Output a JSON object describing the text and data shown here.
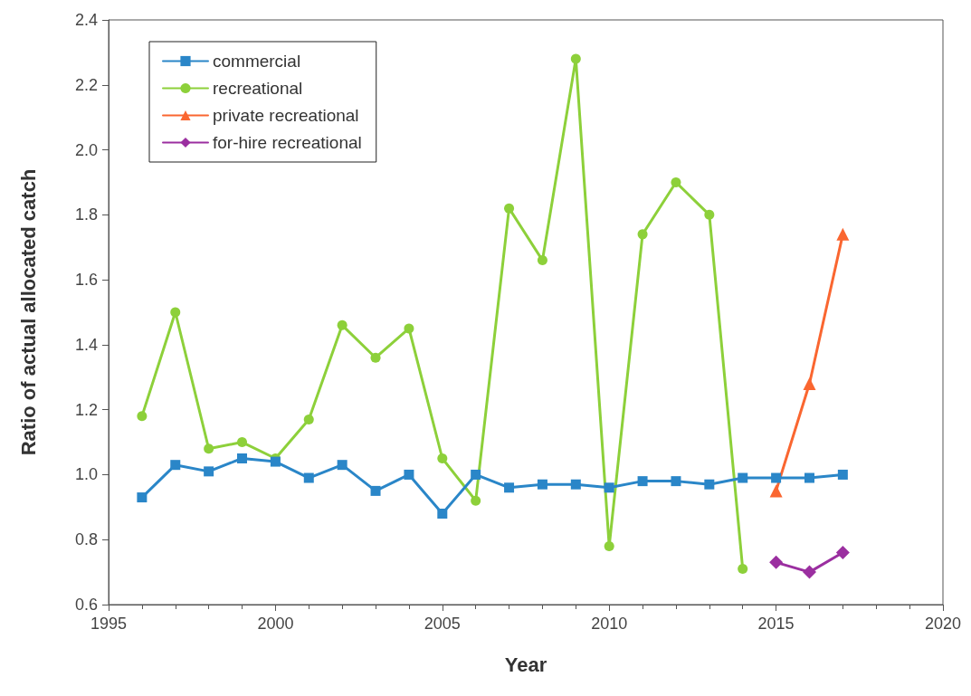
{
  "chart_data": {
    "type": "line",
    "xlabel": "Year",
    "ylabel": "Ratio of actual allocated catch",
    "xlim": [
      1995,
      2020
    ],
    "xticks": [
      1995,
      2000,
      2005,
      2010,
      2015,
      2020
    ],
    "ylim": [
      0.6,
      2.4
    ],
    "yticks": [
      {
        "value": 0.6,
        "label": "0.6"
      },
      {
        "value": 0.8,
        "label": "0.8"
      },
      {
        "value": 1.0,
        "label": "1.0"
      },
      {
        "value": 1.2,
        "label": "1.2"
      },
      {
        "value": 1.4,
        "label": "1.4"
      },
      {
        "value": 1.6,
        "label": "1.6"
      },
      {
        "value": 1.8,
        "label": "1.8"
      },
      {
        "value": 2.0,
        "label": "2.0"
      },
      {
        "value": 2.2,
        "label": "2.2"
      },
      {
        "value": 2.4,
        "label": "2.4"
      }
    ],
    "grid": false,
    "legend": "top left",
    "series": [
      {
        "name": "commercial",
        "color": "#2a86c8",
        "marker": "square",
        "x": [
          1996,
          1997,
          1998,
          1999,
          2000,
          2001,
          2002,
          2003,
          2004,
          2005,
          2006,
          2007,
          2008,
          2009,
          2010,
          2011,
          2012,
          2013,
          2014,
          2015,
          2016,
          2017
        ],
        "values": [
          0.93,
          1.03,
          1.01,
          1.05,
          1.04,
          0.99,
          1.03,
          0.95,
          1.0,
          0.88,
          1.0,
          0.96,
          0.97,
          0.97,
          0.96,
          0.98,
          0.98,
          0.97,
          0.99,
          0.99,
          0.99,
          1.0
        ]
      },
      {
        "name": "recreational",
        "color": "#8dd03a",
        "marker": "circle",
        "x": [
          1996,
          1997,
          1998,
          1999,
          2000,
          2001,
          2002,
          2003,
          2004,
          2005,
          2006,
          2007,
          2008,
          2009,
          2010,
          2011,
          2012,
          2013,
          2014
        ],
        "values": [
          1.18,
          1.5,
          1.08,
          1.1,
          1.05,
          1.17,
          1.46,
          1.36,
          1.45,
          1.05,
          0.92,
          1.82,
          1.66,
          2.28,
          0.78,
          1.74,
          1.9,
          1.8,
          0.71
        ]
      },
      {
        "name": "private recreational",
        "color": "#fa6630",
        "marker": "triangle",
        "x": [
          2015,
          2016,
          2017
        ],
        "values": [
          0.95,
          1.28,
          1.74
        ]
      },
      {
        "name": "for-hire recreational",
        "color": "#9b2fa0",
        "marker": "diamond",
        "x": [
          2015,
          2016,
          2017
        ],
        "values": [
          0.73,
          0.7,
          0.76
        ]
      }
    ]
  }
}
